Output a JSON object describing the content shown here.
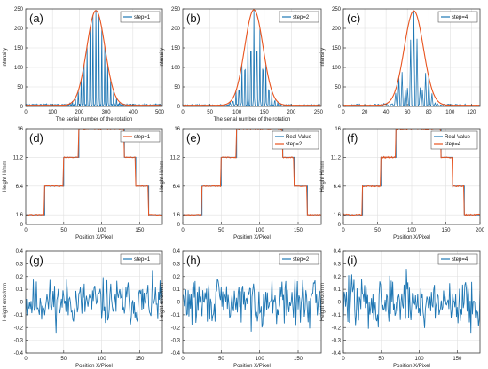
{
  "colors": {
    "blue": "#1f77b4",
    "red": "#e8541f",
    "grid": "#e0e0e0",
    "axis": "#404040"
  },
  "chart_data": [
    {
      "panel_label": "(a)",
      "type": "line",
      "legend": [
        "step=1"
      ],
      "legend_position": "top-right",
      "xlabel": "The serial number of the rotation",
      "ylabel": "Intensity",
      "xlim": [
        0,
        510
      ],
      "ylim": [
        0,
        250
      ],
      "xticks": [
        0,
        100,
        200,
        300,
        400,
        500
      ],
      "yticks": [
        0,
        50,
        100,
        150,
        200,
        250
      ],
      "xticklabels": [
        "0",
        "100",
        "200",
        "300",
        "400",
        "500"
      ],
      "yticklabels": [
        "0",
        "50",
        "100",
        "150",
        "200",
        "250"
      ],
      "signal": {
        "kind": "fringe",
        "center": 262,
        "sigma": 34,
        "peak": 243,
        "period": 11,
        "noise": 6,
        "n": 510
      },
      "grid": true
    },
    {
      "panel_label": "(b)",
      "type": "line",
      "legend": [
        "step=2"
      ],
      "legend_position": "top-right",
      "xlabel": "The serial number of the rotation",
      "ylabel": "Intensity",
      "xlim": [
        0,
        255
      ],
      "ylim": [
        0,
        250
      ],
      "xticks": [
        0,
        50,
        100,
        150,
        200,
        250
      ],
      "yticks": [
        0,
        50,
        100,
        150,
        200,
        250
      ],
      "xticklabels": [
        "0",
        "50",
        "100",
        "150",
        "200",
        "250"
      ],
      "yticklabels": [
        "0",
        "50",
        "100",
        "150",
        "200",
        "250"
      ],
      "signal": {
        "kind": "fringe",
        "center": 131,
        "sigma": 17,
        "peak": 245,
        "period": 5.5,
        "noise": 5,
        "n": 255
      },
      "grid": true
    },
    {
      "panel_label": "(c)",
      "type": "line",
      "legend": [
        "step=4"
      ],
      "legend_position": "top-right",
      "xlabel": "",
      "ylabel": "Intensity",
      "xlim": [
        0,
        128
      ],
      "ylim": [
        0,
        250
      ],
      "xticks": [
        0,
        20,
        40,
        60,
        80,
        100,
        120
      ],
      "yticks": [
        0,
        50,
        100,
        150,
        200,
        250
      ],
      "xticklabels": [
        "0",
        "20",
        "40",
        "60",
        "80",
        "100",
        "120"
      ],
      "yticklabels": [
        "0",
        "50",
        "100",
        "150",
        "200",
        "250"
      ],
      "signal": {
        "kind": "fringe",
        "center": 66,
        "sigma": 9,
        "peak": 242,
        "period": 2.8,
        "noise": 6,
        "n": 128
      },
      "grid": true
    },
    {
      "panel_label": "(d)",
      "type": "line",
      "legend": [
        "step=1"
      ],
      "legend_position": "top-right",
      "xlabel": "Position X/Pixel",
      "ylabel": "Height H/mm",
      "xlim": [
        0,
        180
      ],
      "ylim": [
        0,
        16
      ],
      "xticks": [
        0,
        50,
        100,
        150
      ],
      "yticks": [
        0,
        1.6,
        6.4,
        11.2,
        16
      ],
      "xticklabels": [
        "0",
        "50",
        "100",
        "150"
      ],
      "yticklabels": [
        "0",
        "1.6",
        "6.4",
        "11.2",
        "16"
      ],
      "signal": {
        "kind": "step",
        "edges": [
          0,
          25,
          50,
          70,
          130,
          145,
          162,
          180
        ],
        "levels": [
          1.6,
          6.4,
          11.2,
          16,
          11.2,
          6.4,
          1.6
        ],
        "noise": 0.08
      },
      "grid": true
    },
    {
      "panel_label": "(e)",
      "type": "line",
      "legend": [
        "Real Value",
        "step=2"
      ],
      "legend_position": "top-right",
      "xlabel": "Position X/Pixel",
      "ylabel": "Height H/mm",
      "xlim": [
        0,
        180
      ],
      "ylim": [
        0,
        16
      ],
      "xticks": [
        0,
        50,
        100,
        150
      ],
      "yticks": [
        0,
        1.6,
        6.4,
        11.2,
        16
      ],
      "xticklabels": [
        "0",
        "50",
        "100",
        "150"
      ],
      "yticklabels": [
        "0",
        "1.6",
        "6.4",
        "11.2",
        "16"
      ],
      "signal": {
        "kind": "step",
        "edges": [
          0,
          25,
          50,
          70,
          130,
          145,
          162,
          180
        ],
        "levels": [
          1.6,
          6.4,
          11.2,
          16,
          11.2,
          6.4,
          1.6
        ],
        "noise": 0.08
      },
      "grid": true
    },
    {
      "panel_label": "(f)",
      "type": "line",
      "legend": [
        "Real Value",
        "step=4"
      ],
      "legend_position": "top-right",
      "xlabel": "Position X/Pixel",
      "ylabel": "Height H/mm",
      "xlim": [
        0,
        200
      ],
      "ylim": [
        0,
        16
      ],
      "xticks": [
        0,
        50,
        100,
        150,
        200
      ],
      "yticks": [
        0,
        1.6,
        6.4,
        11.2,
        16
      ],
      "xticklabels": [
        "0",
        "50",
        "100",
        "150",
        "200"
      ],
      "yticklabels": [
        "0",
        "1.6",
        "6.4",
        "11.2",
        "16"
      ],
      "signal": {
        "kind": "step",
        "edges": [
          0,
          28,
          55,
          77,
          143,
          160,
          177,
          200
        ],
        "levels": [
          1.6,
          6.4,
          11.2,
          16,
          11.2,
          6.4,
          1.6
        ],
        "noise": 0.12
      },
      "grid": true
    },
    {
      "panel_label": "(g)",
      "type": "line",
      "legend": [
        "step=1"
      ],
      "legend_position": "top-right",
      "xlabel": "Position X/Pixel",
      "ylabel": "Height error/mm",
      "xlim": [
        0,
        180
      ],
      "ylim": [
        -0.4,
        0.4
      ],
      "xticks": [
        0,
        50,
        100,
        150
      ],
      "yticks": [
        -0.4,
        -0.3,
        -0.2,
        -0.1,
        0,
        0.1,
        0.2,
        0.3,
        0.4
      ],
      "xticklabels": [
        "0",
        "50",
        "100",
        "150"
      ],
      "yticklabels": [
        "-0.4",
        "-0.3",
        "-0.2",
        "-0.1",
        "0",
        "0.1",
        "0.2",
        "0.3",
        "0.4"
      ],
      "signal": {
        "kind": "noise",
        "amp": 0.11,
        "n": 180,
        "seed": 11
      },
      "grid": true
    },
    {
      "panel_label": "(h)",
      "type": "line",
      "legend": [
        "step=2"
      ],
      "legend_position": "top-right",
      "xlabel": "Position X/Pixel",
      "ylabel": "Height error/mm",
      "xlim": [
        0,
        180
      ],
      "ylim": [
        -0.4,
        0.4
      ],
      "xticks": [
        0,
        50,
        100,
        150
      ],
      "yticks": [
        -0.4,
        -0.3,
        -0.2,
        -0.1,
        0,
        0.1,
        0.2,
        0.3,
        0.4
      ],
      "xticklabels": [
        "0",
        "50",
        "100",
        "150"
      ],
      "yticklabels": [
        "-0.4",
        "-0.3",
        "-0.2",
        "-0.1",
        "0",
        "0.1",
        "0.2",
        "0.3",
        "0.4"
      ],
      "signal": {
        "kind": "noise",
        "amp": 0.11,
        "n": 180,
        "seed": 29
      },
      "grid": true
    },
    {
      "panel_label": "(i)",
      "type": "line",
      "legend": [
        "step=4"
      ],
      "legend_position": "top-right",
      "xlabel": "Position X/Pixel",
      "ylabel": "Height error/mm",
      "xlim": [
        0,
        180
      ],
      "ylim": [
        -0.4,
        0.4
      ],
      "xticks": [
        0,
        50,
        100,
        150
      ],
      "yticks": [
        -0.4,
        -0.3,
        -0.2,
        -0.1,
        0,
        0.1,
        0.2,
        0.3,
        0.4
      ],
      "xticklabels": [
        "0",
        "50",
        "100",
        "150"
      ],
      "yticklabels": [
        "-0.4",
        "-0.3",
        "-0.2",
        "-0.1",
        "0",
        "0.1",
        "0.2",
        "0.3",
        "0.4"
      ],
      "signal": {
        "kind": "noise",
        "amp": 0.13,
        "n": 180,
        "seed": 47
      },
      "grid": true
    }
  ]
}
